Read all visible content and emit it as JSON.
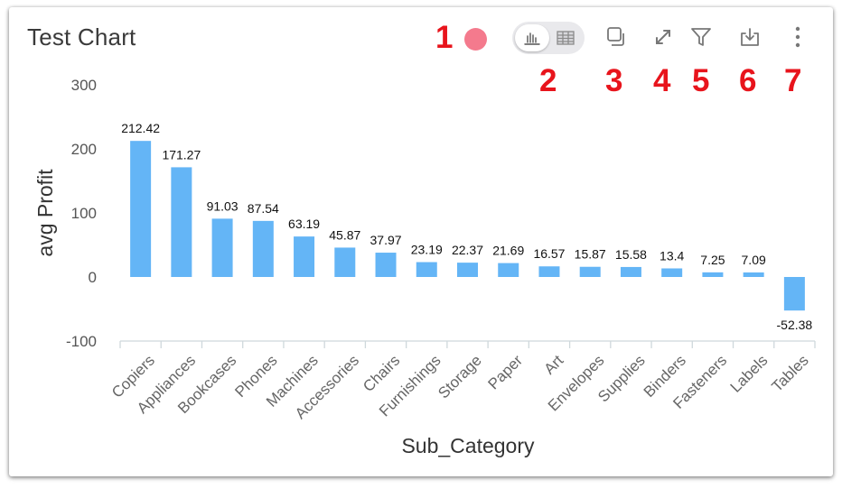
{
  "header": {
    "title": "Test Chart"
  },
  "annotations": [
    "1",
    "2",
    "3",
    "4",
    "5",
    "6",
    "7"
  ],
  "colors": {
    "bar": "#64b5f6",
    "status_dot": "#f47a8d",
    "annotation": "#e8141c"
  },
  "toolbar": {
    "status": "status-dot",
    "view_toggle": [
      "bar-chart-icon",
      "table-icon"
    ],
    "actions": [
      "copy-icon",
      "expand-icon",
      "filter-icon",
      "download-icon",
      "more-vertical-icon"
    ]
  },
  "chart_data": {
    "type": "bar",
    "xlabel": "Sub_Category",
    "ylabel": "avg Profit",
    "ylim": [
      -100,
      300
    ],
    "yticks": [
      -100,
      0,
      100,
      200,
      300
    ],
    "grid": false,
    "categories": [
      "Copiers",
      "Appliances",
      "Bookcases",
      "Phones",
      "Machines",
      "Accessories",
      "Chairs",
      "Furnishings",
      "Storage",
      "Paper",
      "Art",
      "Envelopes",
      "Supplies",
      "Binders",
      "Fasteners",
      "Labels",
      "Tables"
    ],
    "values": [
      212.42,
      171.27,
      91.03,
      87.54,
      63.19,
      45.87,
      37.97,
      23.19,
      22.37,
      21.69,
      16.57,
      15.87,
      15.58,
      13.4,
      7.25,
      7.09,
      -52.38
    ],
    "data_labels": [
      "212.42",
      "171.27",
      "91.03",
      "87.54",
      "63.19",
      "45.87",
      "37.97",
      "23.19",
      "22.37",
      "21.69",
      "16.57",
      "15.87",
      "15.58",
      "13.4",
      "7.25",
      "7.09",
      "-52.38"
    ]
  }
}
